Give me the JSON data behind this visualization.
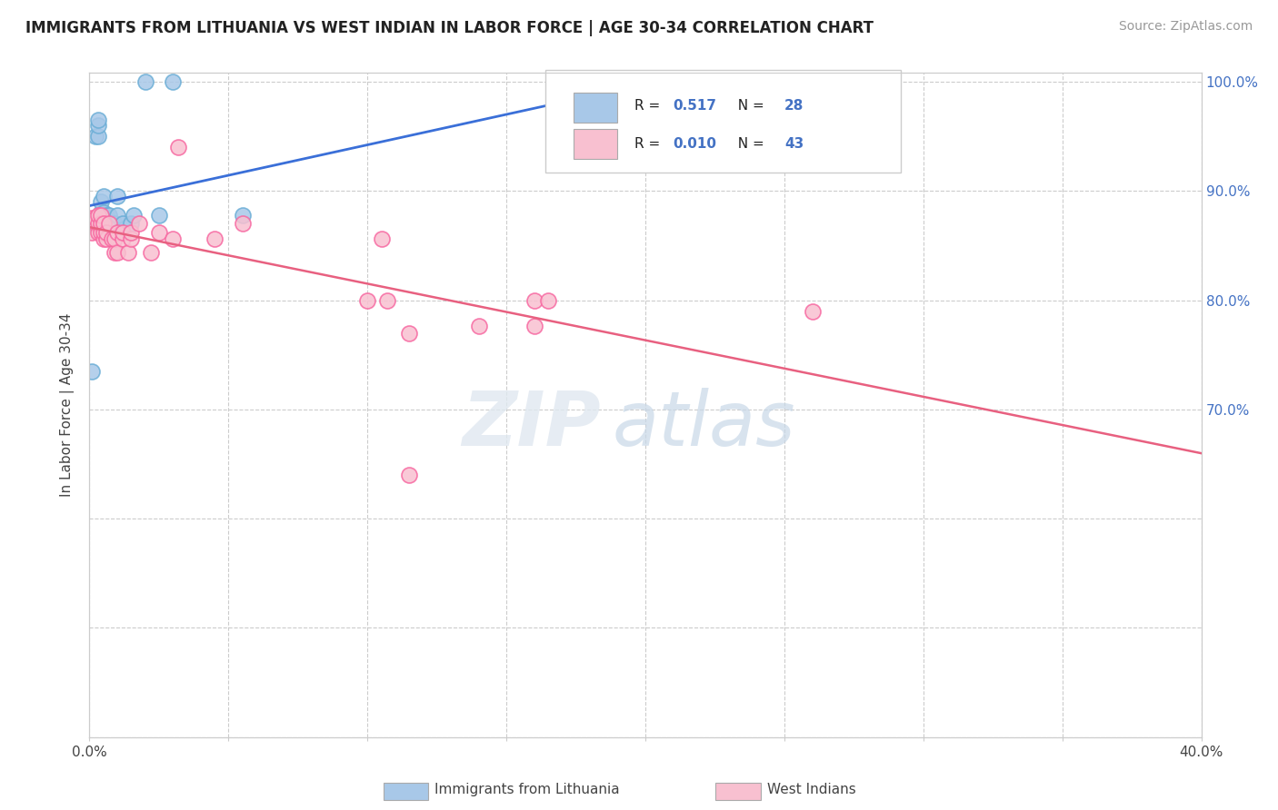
{
  "title": "IMMIGRANTS FROM LITHUANIA VS WEST INDIAN IN LABOR FORCE | AGE 30-34 CORRELATION CHART",
  "source": "Source: ZipAtlas.com",
  "ylabel": "In Labor Force | Age 30-34",
  "x_min": 0.0,
  "x_max": 0.4,
  "y_min": 0.4,
  "y_max": 1.008,
  "legend_R1": "0.517",
  "legend_N1": "28",
  "legend_R2": "0.010",
  "legend_N2": "43",
  "blue_color": "#a8c8e8",
  "blue_edge_color": "#6baed6",
  "pink_color": "#f8c0d0",
  "pink_edge_color": "#f768a1",
  "blue_line_color": "#3a6fd8",
  "pink_line_color": "#e86080",
  "grid_color": "#cccccc",
  "blue_x": [
    0.001,
    0.001,
    0.002,
    0.003,
    0.003,
    0.003,
    0.004,
    0.004,
    0.004,
    0.005,
    0.005,
    0.005,
    0.006,
    0.006,
    0.007,
    0.008,
    0.008,
    0.009,
    0.01,
    0.01,
    0.012,
    0.015,
    0.016,
    0.02,
    0.025,
    0.03,
    0.055,
    0.21
  ],
  "blue_y": [
    0.735,
    0.87,
    0.95,
    0.95,
    0.96,
    0.965,
    0.87,
    0.88,
    0.89,
    0.87,
    0.88,
    0.895,
    0.87,
    0.878,
    0.878,
    0.862,
    0.87,
    0.87,
    0.878,
    0.895,
    0.87,
    0.87,
    0.878,
    1.0,
    0.878,
    1.0,
    0.878,
    1.0
  ],
  "pink_x": [
    0.001,
    0.001,
    0.002,
    0.002,
    0.003,
    0.003,
    0.003,
    0.004,
    0.004,
    0.004,
    0.005,
    0.005,
    0.005,
    0.006,
    0.006,
    0.007,
    0.008,
    0.009,
    0.009,
    0.01,
    0.01,
    0.012,
    0.012,
    0.014,
    0.015,
    0.015,
    0.018,
    0.022,
    0.025,
    0.03,
    0.032,
    0.045,
    0.055,
    0.1,
    0.105,
    0.107,
    0.115,
    0.16,
    0.165,
    0.26,
    0.115,
    0.14,
    0.16
  ],
  "pink_y": [
    0.875,
    0.862,
    0.87,
    0.875,
    0.862,
    0.87,
    0.878,
    0.862,
    0.87,
    0.878,
    0.856,
    0.862,
    0.87,
    0.856,
    0.862,
    0.87,
    0.856,
    0.844,
    0.856,
    0.844,
    0.862,
    0.856,
    0.862,
    0.844,
    0.856,
    0.862,
    0.87,
    0.844,
    0.862,
    0.856,
    0.94,
    0.856,
    0.87,
    0.8,
    0.856,
    0.8,
    0.77,
    0.8,
    0.8,
    0.79,
    0.64,
    0.776,
    0.776
  ]
}
